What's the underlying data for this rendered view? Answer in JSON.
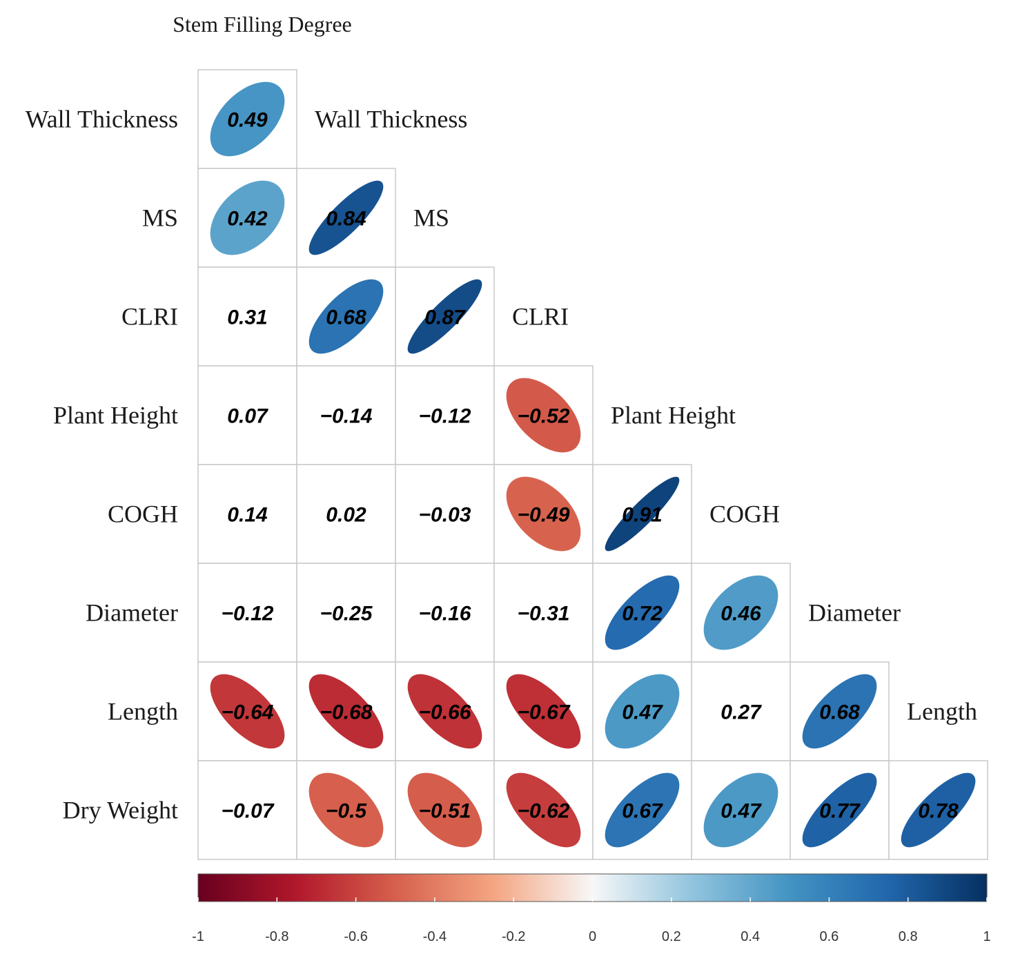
{
  "chart_data": {
    "type": "heatmap",
    "subtype": "correlation-ellipse-lower-triangle",
    "title": "Stem Filling Degree",
    "variables": [
      "Stem Filling Degree",
      "Wall Thickness",
      "MS",
      "CLRI",
      "Plant Height",
      "COGH",
      "Diameter",
      "Length",
      "Dry Weight"
    ],
    "row_labels": [
      "Wall Thickness",
      "MS",
      "CLRI",
      "Plant Height",
      "COGH",
      "Diameter",
      "Length",
      "Dry Weight"
    ],
    "diagonal_labels": [
      "Wall Thickness",
      "MS",
      "CLRI",
      "Plant Height",
      "COGH",
      "Diameter",
      "Length"
    ],
    "matrix": [
      [
        0.49
      ],
      [
        0.42,
        0.84
      ],
      [
        0.31,
        0.68,
        0.87
      ],
      [
        0.07,
        -0.14,
        -0.12,
        -0.52
      ],
      [
        0.14,
        0.02,
        -0.03,
        -0.49,
        0.91
      ],
      [
        -0.12,
        -0.25,
        -0.16,
        -0.31,
        0.72,
        0.46
      ],
      [
        -0.64,
        -0.68,
        -0.66,
        -0.67,
        0.47,
        0.27,
        0.68
      ],
      [
        -0.07,
        -0.5,
        -0.51,
        -0.62,
        0.67,
        0.47,
        0.77,
        0.78
      ]
    ],
    "matrix_text": [
      [
        "0.49"
      ],
      [
        "0.42",
        "0.84"
      ],
      [
        "0.31",
        "0.68",
        "0.87"
      ],
      [
        "0.07",
        "−0.14",
        "−0.12",
        "−0.52"
      ],
      [
        "0.14",
        "0.02",
        "−0.03",
        "−0.49",
        "0.91"
      ],
      [
        "−0.12",
        "−0.25",
        "−0.16",
        "−0.31",
        "0.72",
        "0.46"
      ],
      [
        "−0.64",
        "−0.68",
        "−0.66",
        "−0.67",
        "0.47",
        "0.27",
        "0.68"
      ],
      [
        "−0.07",
        "−0.5",
        "−0.51",
        "−0.62",
        "0.67",
        "0.47",
        "0.77",
        "0.78"
      ]
    ],
    "significance_threshold": 0.4,
    "colorbar": {
      "range": [
        -1,
        1
      ],
      "ticks": [
        -1,
        -0.8,
        -0.6,
        -0.4,
        -0.2,
        0,
        0.2,
        0.4,
        0.6,
        0.8,
        1
      ],
      "tick_labels": [
        "-1",
        "-0.8",
        "-0.6",
        "-0.4",
        "-0.2",
        "0",
        "0.2",
        "0.4",
        "0.6",
        "0.8",
        "1"
      ],
      "stops": [
        {
          "value": -1,
          "color": "#67001f"
        },
        {
          "value": -0.75,
          "color": "#b2182b"
        },
        {
          "value": -0.5,
          "color": "#d6604d"
        },
        {
          "value": -0.25,
          "color": "#f4a582"
        },
        {
          "value": 0,
          "color": "#f7f7f7"
        },
        {
          "value": 0.25,
          "color": "#92c5de"
        },
        {
          "value": 0.5,
          "color": "#4393c3"
        },
        {
          "value": 0.75,
          "color": "#2166ac"
        },
        {
          "value": 1,
          "color": "#053061"
        }
      ],
      "placement": "bottom"
    }
  }
}
